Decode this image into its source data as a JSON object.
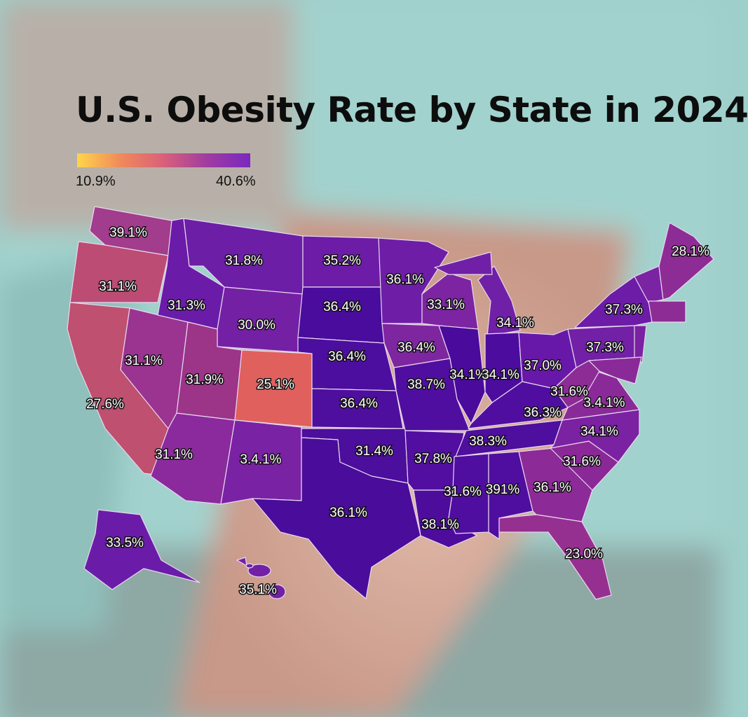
{
  "title": "U.S. Obesity Rate by State in 2024",
  "legend": {
    "min_label": "10.9%",
    "max_label": "40.6%",
    "gradient_colors": [
      "#ffd54a",
      "#f08a5a",
      "#d9607a",
      "#a03ca0",
      "#7a28c0"
    ]
  },
  "states": [
    {
      "code": "WA",
      "label": "39.1%",
      "color": "#a23c8c"
    },
    {
      "code": "OR",
      "label": "31.1%",
      "color": "#bc4c74"
    },
    {
      "code": "CA",
      "label": "27.6%",
      "color": "#bf5070"
    },
    {
      "code": "NV",
      "label": "31.1%",
      "color": "#9a3490"
    },
    {
      "code": "ID",
      "label": "31.3%",
      "color": "#6a1ca8"
    },
    {
      "code": "MT",
      "label": "31.8%",
      "color": "#6c1ea6"
    },
    {
      "code": "WY",
      "label": "30.0%",
      "color": "#7420a4"
    },
    {
      "code": "UT",
      "label": "31.9%",
      "color": "#9c3488"
    },
    {
      "code": "CO",
      "label": "25.1%",
      "color": "#e0605e"
    },
    {
      "code": "AZ",
      "label": "31.1%",
      "color": "#8a2a9c"
    },
    {
      "code": "NM",
      "label": "3.4.1%",
      "color": "#7a22a4"
    },
    {
      "code": "ND",
      "label": "35.2%",
      "color": "#6c1ca6"
    },
    {
      "code": "SD",
      "label": "36.4%",
      "color": "#4a0c9c"
    },
    {
      "code": "NE",
      "label": "36.4%",
      "color": "#4c0e9e"
    },
    {
      "code": "KS",
      "label": "36.4%",
      "color": "#4e0e9e"
    },
    {
      "code": "OK",
      "label": "31.4%",
      "color": "#4c0e9c"
    },
    {
      "code": "TX",
      "label": "36.1%",
      "color": "#4a0c9a"
    },
    {
      "code": "MN",
      "label": "36.1%",
      "color": "#6e1ea6"
    },
    {
      "code": "IA",
      "label": "36.4%",
      "color": "#7e26a0"
    },
    {
      "code": "MO",
      "label": "38.7%",
      "color": "#500ea0"
    },
    {
      "code": "AR",
      "label": "37.8%",
      "color": "#520ea0"
    },
    {
      "code": "LA",
      "label": "38.1%",
      "color": "#4e0c9c"
    },
    {
      "code": "WI",
      "label": "33.1%",
      "color": "#7c24a2"
    },
    {
      "code": "IL",
      "label": "34.1%",
      "color": "#4a0a9c"
    },
    {
      "code": "MI",
      "label": "34.1%",
      "color": "#7020a6"
    },
    {
      "code": "IN",
      "label": "34.1%",
      "color": "#4c0c9e"
    },
    {
      "code": "OH",
      "label": "37.0%",
      "color": "#6818a8"
    },
    {
      "code": "KY",
      "label": "36.3%",
      "color": "#500ea0"
    },
    {
      "code": "TN",
      "label": "38.3%",
      "color": "#4e0e9e"
    },
    {
      "code": "MS",
      "label": "31.6%",
      "color": "#500ea0"
    },
    {
      "code": "AL",
      "label": "391%",
      "color": "#500ea0"
    },
    {
      "code": "GA",
      "label": "36.1%",
      "color": "#8c2a98"
    },
    {
      "code": "FL",
      "label": "23.0%",
      "color": "#963090"
    },
    {
      "code": "SC",
      "label": "31.6%",
      "color": "#8a2898"
    },
    {
      "code": "NC",
      "label": "34.1%",
      "color": "#7a22a2"
    },
    {
      "code": "VA",
      "label": "3.4.1%",
      "color": "#8a2a98"
    },
    {
      "code": "WV",
      "label": "31.6%",
      "color": "#8c2c94"
    },
    {
      "code": "PA",
      "label": "37.3%",
      "color": "#7220a6"
    },
    {
      "code": "NY",
      "label": "37.3%",
      "color": "#6c1ca6"
    },
    {
      "code": "NJ",
      "label": "",
      "color": "#7a22a2"
    },
    {
      "code": "MD",
      "label": "",
      "color": "#8a2a98"
    },
    {
      "code": "NE2",
      "label": "",
      "color": "#7a24a4"
    },
    {
      "code": "SNE",
      "label": "",
      "color": "#8e2c96"
    },
    {
      "code": "ME",
      "label": "28.1%",
      "color": "#8e2c96"
    },
    {
      "code": "AK",
      "label": "33.5%",
      "color": "#6a1ca8"
    },
    {
      "code": "HI",
      "label": "35.1%",
      "color": "#7220a6"
    }
  ]
}
